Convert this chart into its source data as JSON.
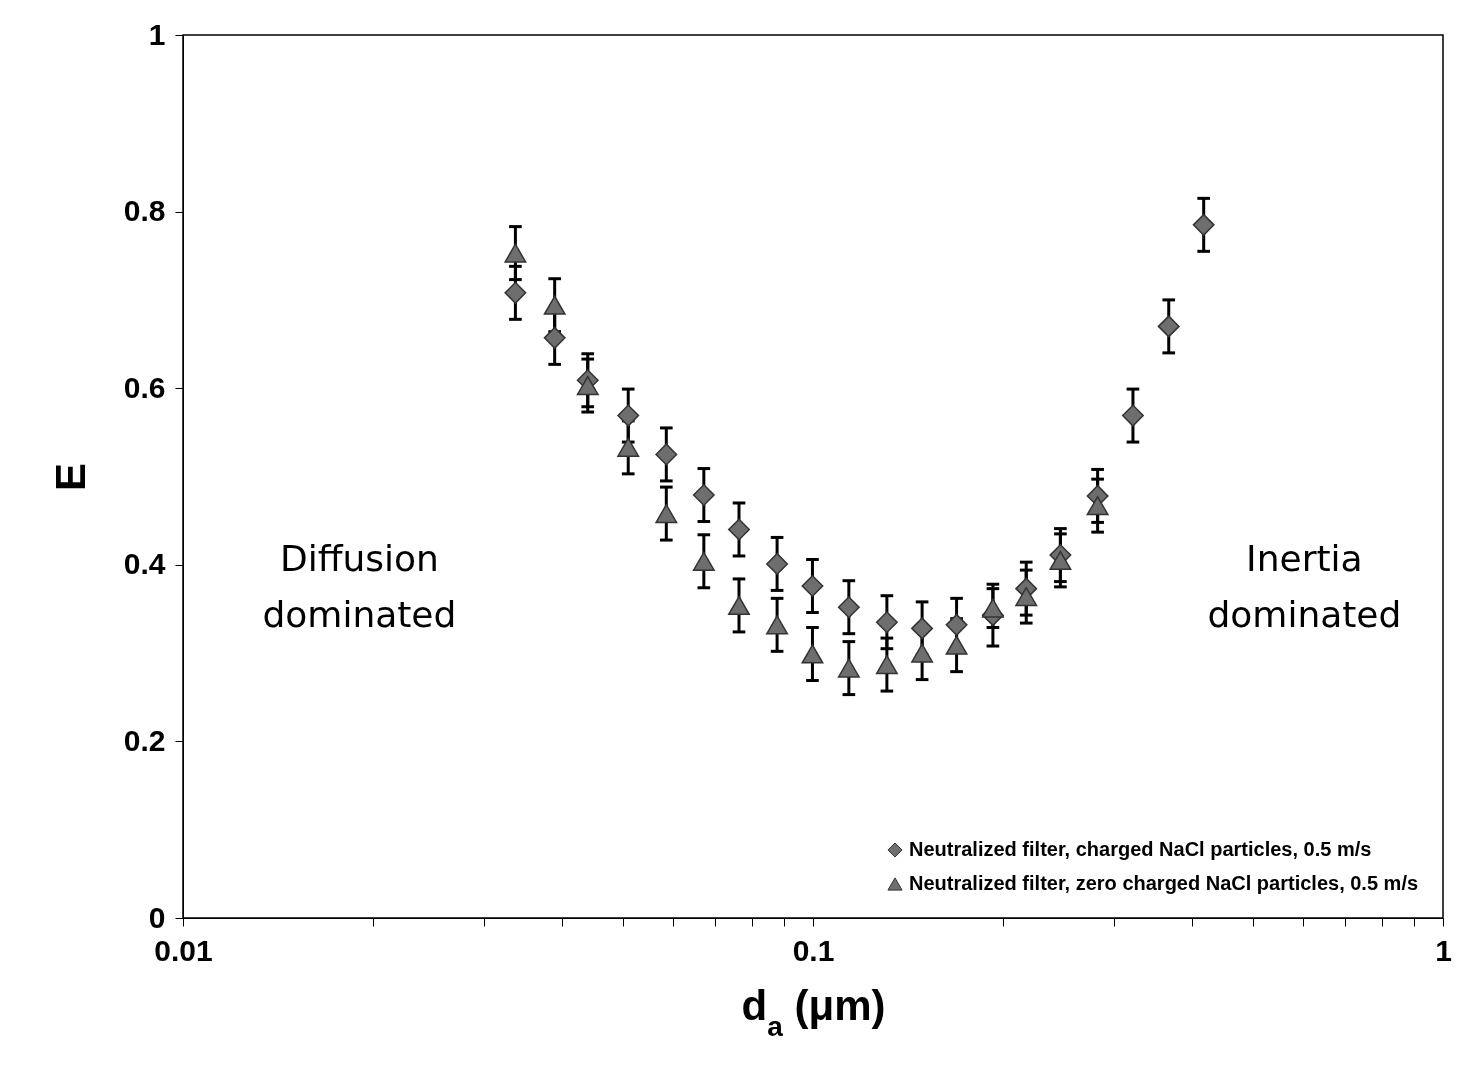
{
  "chart_data": {
    "type": "scatter",
    "xlabel": "d$_{a}$ (μm)",
    "ylabel": "E",
    "log": "x",
    "xlim": [
      0.01,
      1
    ],
    "xticks": [
      0.01,
      {
        "value": 0.02,
        "label": null
      },
      {
        "value": 0.03,
        "label": null
      },
      {
        "value": 0.04,
        "label": null
      },
      {
        "value": 0.05,
        "label": null
      },
      {
        "value": 0.06,
        "label": null
      },
      {
        "value": 0.07,
        "label": null
      },
      {
        "value": 0.08,
        "label": null
      },
      {
        "value": 0.09,
        "label": null
      },
      0.1,
      {
        "value": 0.2,
        "label": null
      },
      {
        "value": 0.3,
        "label": null
      },
      {
        "value": 0.4,
        "label": null
      },
      {
        "value": 0.5,
        "label": null
      },
      {
        "value": 0.6,
        "label": null
      },
      {
        "value": 0.7,
        "label": null
      },
      {
        "value": 0.8,
        "label": null
      },
      {
        "value": 0.9,
        "label": null
      },
      1
    ],
    "ylim": [
      0,
      1
    ],
    "yticks": [
      0,
      0.2,
      0.4,
      0.6,
      0.8,
      1
    ],
    "grid": false,
    "legend": "bottom right",
    "annotations": [
      "Diffusion dominated",
      "Inertia dominated"
    ],
    "series": [
      {
        "name": "Neutralized filter, charged NaCl particles, 0.5 m/s",
        "color": "#6e6e6e",
        "marker": "diamond",
        "x": [
          0.0337,
          0.0389,
          0.0439,
          0.0509,
          0.0585,
          0.0671,
          0.0763,
          0.0877,
          0.0998,
          0.114,
          0.131,
          0.149,
          0.169,
          0.193,
          0.218,
          0.247,
          0.283,
          0.322,
          0.367,
          0.417
        ],
        "values": [
          0.708,
          0.657,
          0.609,
          0.569,
          0.525,
          0.479,
          0.44,
          0.401,
          0.376,
          0.352,
          0.335,
          0.328,
          0.332,
          0.343,
          0.373,
          0.411,
          0.478,
          0.569,
          0.67,
          0.785
        ],
        "errors": [
          0.03,
          0.03,
          0.03,
          0.03,
          0.03,
          0.03,
          0.03,
          0.03,
          0.03,
          0.03,
          0.03,
          0.03,
          0.03,
          0.035,
          0.03,
          0.03,
          0.03,
          0.03,
          0.03,
          0.03
        ]
      },
      {
        "name": "Neutralized filter, zero charged NaCl particles, 0.5 m/s",
        "color": "#6e6e6e",
        "marker": "triangle",
        "x": [
          0.0337,
          0.0389,
          0.0439,
          0.0509,
          0.0585,
          0.0671,
          0.0763,
          0.0877,
          0.0998,
          0.114,
          0.131,
          0.149,
          0.169,
          0.193,
          0.218,
          0.247,
          0.283
        ],
        "values": [
          0.753,
          0.694,
          0.603,
          0.533,
          0.458,
          0.404,
          0.354,
          0.332,
          0.299,
          0.283,
          0.287,
          0.3,
          0.309,
          0.351,
          0.364,
          0.405,
          0.467
        ],
        "errors": [
          0.03,
          0.03,
          0.03,
          0.03,
          0.03,
          0.03,
          0.03,
          0.03,
          0.03,
          0.03,
          0.03,
          0.03,
          0.03,
          0.022,
          0.03,
          0.03,
          0.03
        ]
      }
    ]
  }
}
